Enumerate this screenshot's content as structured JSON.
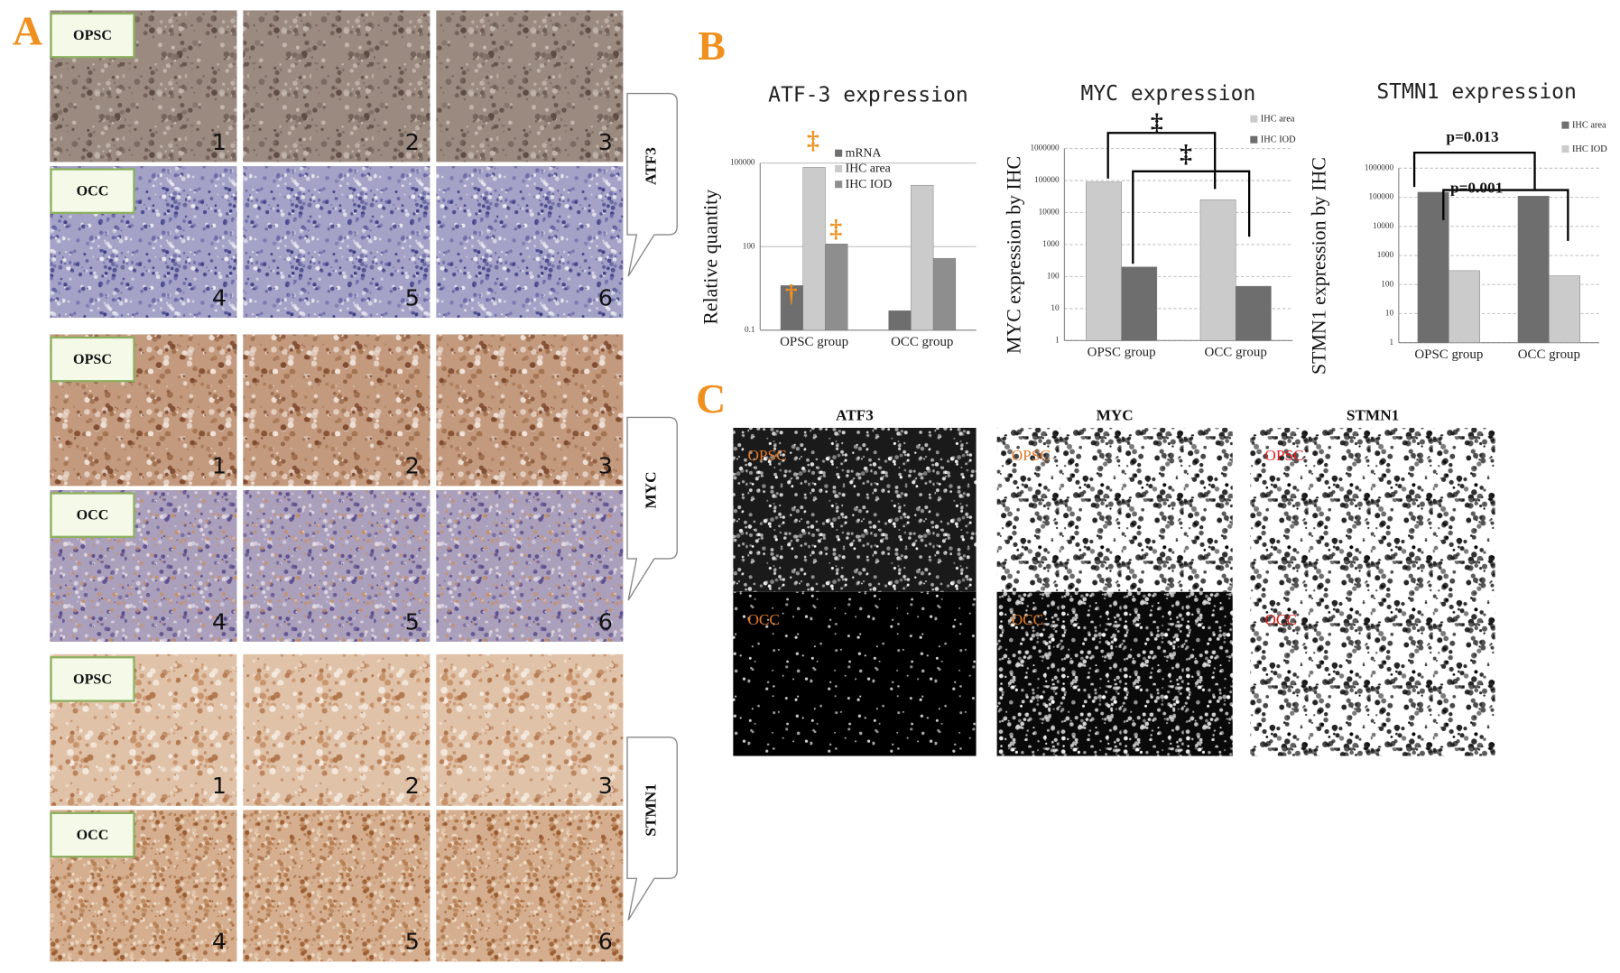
{
  "panel_a": {
    "label": "A",
    "groups": [
      {
        "marker": "ATF3",
        "rows": [
          {
            "label": "OPSC",
            "numbers": [
              1,
              2,
              3
            ]
          },
          {
            "label": "OCC",
            "numbers": [
              4,
              5,
              6
            ]
          }
        ]
      },
      {
        "marker": "MYC",
        "rows": [
          {
            "label": "OPSC",
            "numbers": [
              1,
              2,
              3
            ]
          },
          {
            "label": "OCC",
            "numbers": [
              4,
              5,
              6
            ]
          }
        ]
      },
      {
        "marker": "STMN1",
        "rows": [
          {
            "label": "OPSC",
            "numbers": [
              1,
              2,
              3
            ]
          },
          {
            "label": "OCC",
            "numbers": [
              4,
              5,
              6
            ]
          }
        ]
      }
    ]
  },
  "panel_b_label": "B",
  "chart_data": [
    {
      "type": "bar",
      "title": "ATF-3 expression",
      "y_label": "Relative quantity",
      "categories": [
        "OPSC group",
        "OCC group"
      ],
      "series": [
        {
          "name": "mRNA",
          "color": "#6e6e6e",
          "values": [
            4,
            0.5
          ]
        },
        {
          "name": "IHC area",
          "color": "#cbcbcb",
          "values": [
            70000,
            16000
          ]
        },
        {
          "name": "IHC IOD",
          "color": "#8e8e8e",
          "values": [
            125,
            38
          ]
        }
      ],
      "log_scale": true,
      "ylim": [
        0.1,
        100000
      ],
      "yticks": [
        0.1,
        100,
        100000
      ],
      "grid": true,
      "annotations": [
        "†",
        "‡",
        "‡"
      ],
      "annotation_color": "#f0901e"
    },
    {
      "type": "bar",
      "title": "MYC expression",
      "y_label": "MYC expression by IHC",
      "categories": [
        "OPSC group",
        "OCC group"
      ],
      "series": [
        {
          "name": "IHC area",
          "color": "#cbcbcb",
          "values": [
            90000,
            25000
          ]
        },
        {
          "name": "IHC IOD",
          "color": "#6e6e6e",
          "values": [
            200,
            50
          ]
        }
      ],
      "log_scale": true,
      "ylim": [
        1,
        1000000
      ],
      "yticks": [
        1,
        10,
        100,
        1000,
        10000,
        100000,
        1000000
      ],
      "grid": true,
      "annotations": [
        "‡",
        "‡"
      ],
      "annotation_color": "#111111"
    },
    {
      "type": "bar",
      "title": "STMN1 expression",
      "y_label": "STMN1 expression by IHC",
      "categories": [
        "OPSC group",
        "OCC group"
      ],
      "series": [
        {
          "name": "IHC area",
          "color": "#6e6e6e",
          "values": [
            150000,
            110000
          ]
        },
        {
          "name": "IHC IOD",
          "color": "#cbcbcb",
          "values": [
            300,
            200
          ]
        }
      ],
      "log_scale": true,
      "ylim": [
        1,
        1000000
      ],
      "yticks": [
        1,
        10,
        100,
        1000,
        10000,
        100000,
        1000000
      ],
      "grid": true,
      "annotations": [
        "p=0.013",
        "p=0.001"
      ],
      "annotation_color": "#111111"
    }
  ],
  "panel_c": {
    "label": "C",
    "columns": [
      {
        "title": "ATF3",
        "rows": [
          "OPSC",
          "OCC"
        ]
      },
      {
        "title": "MYC",
        "rows": [
          "OPSC",
          "OCC"
        ]
      },
      {
        "title": "STMN1",
        "rows": [
          "OPSC",
          "OCC"
        ]
      }
    ]
  }
}
